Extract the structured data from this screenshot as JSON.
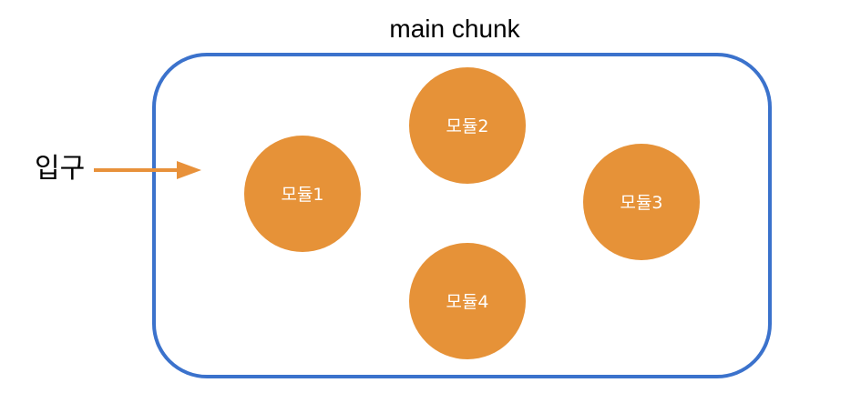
{
  "chunk": {
    "title": "main chunk",
    "border_color": "#3B72CC"
  },
  "entry": {
    "label": "입구",
    "arrow_color": "#E8913A"
  },
  "modules": [
    {
      "label": "모듈1"
    },
    {
      "label": "모듈2"
    },
    {
      "label": "모듈3"
    },
    {
      "label": "모듈4"
    }
  ],
  "module_color": "#E69238",
  "module_text_color": "#FFFFFF"
}
